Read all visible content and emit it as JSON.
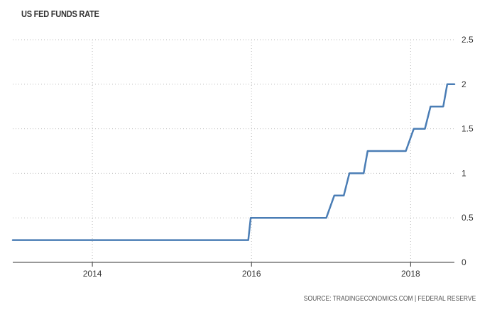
{
  "chart_data": {
    "type": "line",
    "title": "US FED FUNDS RATE",
    "source": "SOURCE: TRADINGECONOMICS.COM | FEDERAL RESERVE",
    "xlabel": "",
    "ylabel": "",
    "xlim": [
      2013.0,
      2018.55
    ],
    "ylim": [
      0,
      2.5
    ],
    "x_ticks": [
      {
        "value": 2014,
        "label": "2014"
      },
      {
        "value": 2016,
        "label": "2016"
      },
      {
        "value": 2018,
        "label": "2018"
      }
    ],
    "y_ticks": [
      {
        "value": 0,
        "label": "0"
      },
      {
        "value": 0.5,
        "label": "0.5"
      },
      {
        "value": 1,
        "label": "1"
      },
      {
        "value": 1.5,
        "label": "1.5"
      },
      {
        "value": 2,
        "label": "2"
      },
      {
        "value": 2.5,
        "label": "2.5"
      }
    ],
    "y_axis_position": "right",
    "grid": true,
    "line_color": "#4a7db5",
    "series": [
      {
        "x": [
          2013.0,
          2015.96,
          2015.99,
          2016.94,
          2017.04,
          2017.16,
          2017.23,
          2017.41,
          2017.46,
          2017.94,
          2018.04,
          2018.18,
          2018.25,
          2018.41,
          2018.46,
          2018.55
        ],
        "values": [
          0.25,
          0.25,
          0.5,
          0.5,
          0.75,
          0.75,
          1.0,
          1.0,
          1.25,
          1.25,
          1.5,
          1.5,
          1.75,
          1.75,
          2.0,
          2.0
        ]
      }
    ]
  }
}
